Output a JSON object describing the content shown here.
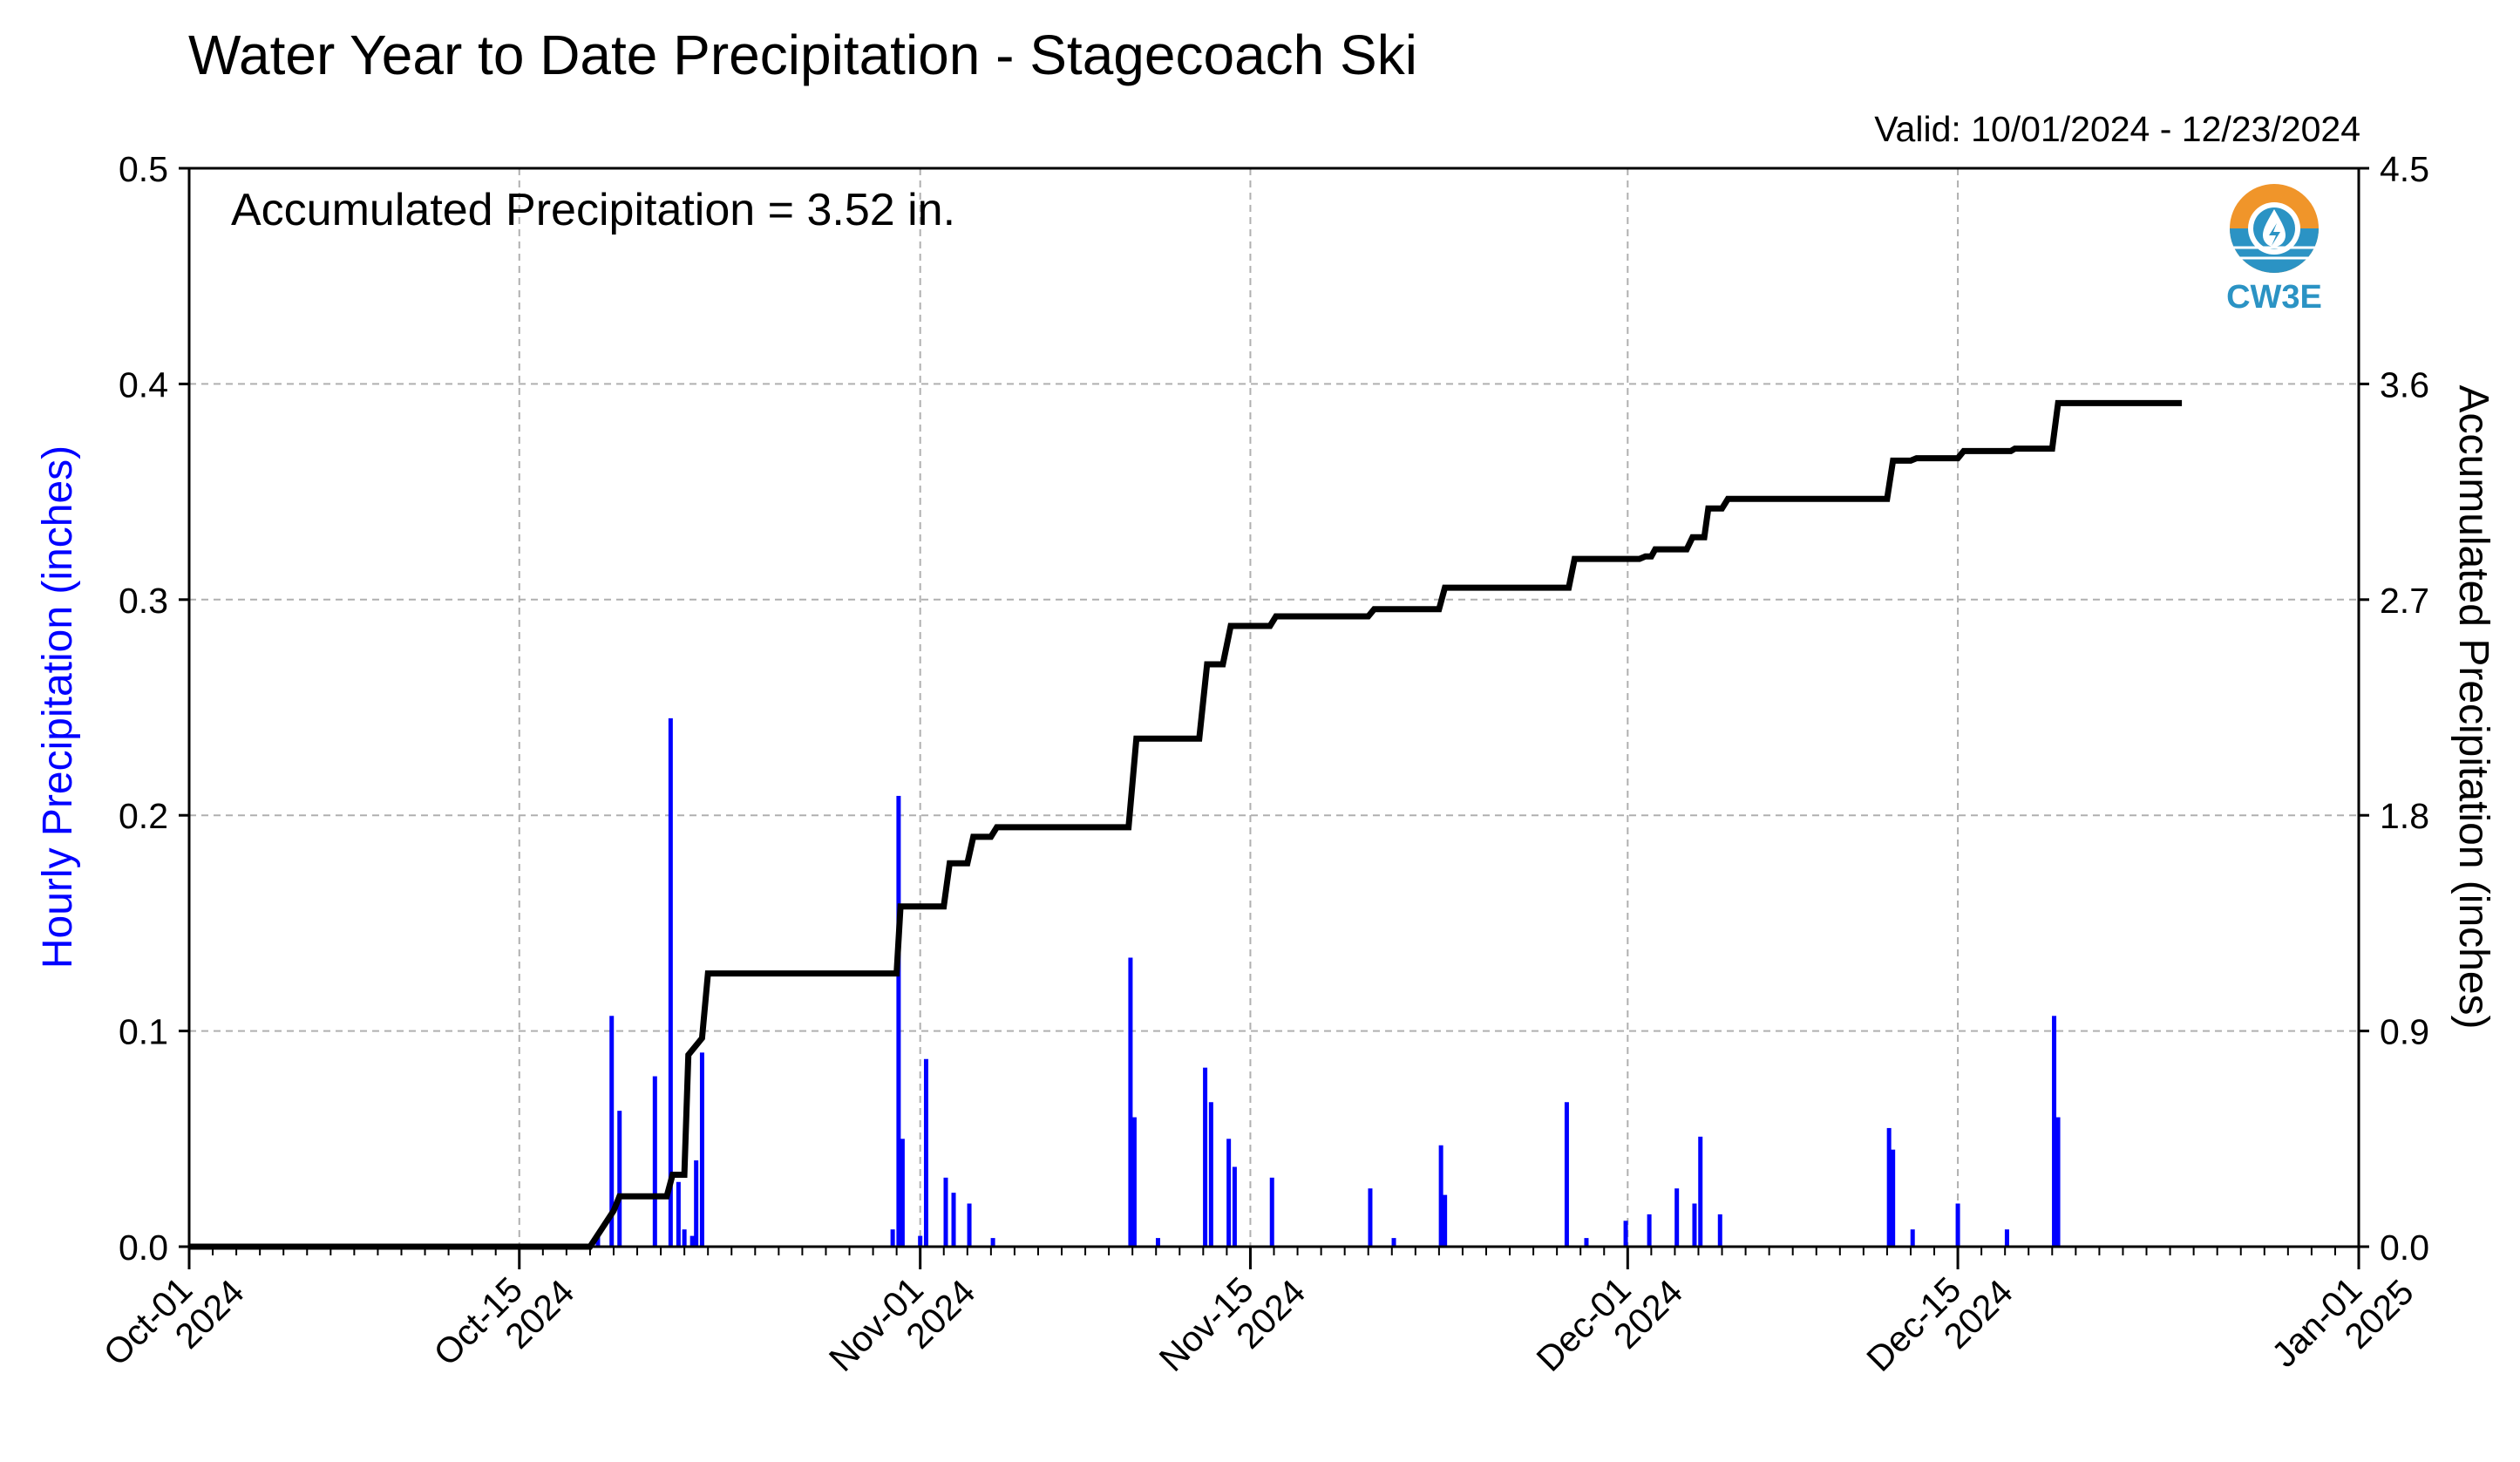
{
  "title": "Water Year to Date Precipitation - Stagecoach Ski",
  "valid_text": "Valid: 10/01/2024 - 12/23/2024",
  "annotation": "Accumulated Precipitation = 3.52 in.",
  "logo": {
    "text": "CW3E",
    "icon": "cw3e-water-drop-logo",
    "colors": {
      "sun": "#f0952a",
      "water": "#2b93c4",
      "drop": "#ffffff"
    }
  },
  "colors": {
    "hourly_bars": "#0000ff",
    "accumulated_line": "#000000",
    "grid": "#b0b0b0",
    "left_axis_label": "#0000ff",
    "right_axis_label": "#000000"
  },
  "chart_data": {
    "type": "bar+line",
    "title": "Water Year to Date Precipitation - Stagecoach Ski",
    "ylabel": "Hourly Precipitation (inches)",
    "y2label": "Accumulated Precipitation (inches)",
    "ylim": [
      0,
      0.5
    ],
    "y2lim": [
      0,
      4.5
    ],
    "xlim": [
      "2024-10-01",
      "2025-01-01"
    ],
    "grid": true,
    "y_ticks": [
      "0.0",
      "0.1",
      "0.2",
      "0.3",
      "0.4",
      "0.5"
    ],
    "y2_ticks": [
      "0.0",
      "0.9",
      "1.8",
      "2.7",
      "3.6",
      "4.5"
    ],
    "x_ticks": [
      {
        "date": "2024-10-01",
        "line1": "Oct-01",
        "line2": "2024"
      },
      {
        "date": "2024-10-15",
        "line1": "Oct-15",
        "line2": "2024"
      },
      {
        "date": "2024-11-01",
        "line1": "Nov-01",
        "line2": "2024"
      },
      {
        "date": "2024-11-15",
        "line1": "Nov-15",
        "line2": "2024"
      },
      {
        "date": "2024-12-01",
        "line1": "Dec-01",
        "line2": "2024"
      },
      {
        "date": "2024-12-15",
        "line1": "Dec-15",
        "line2": "2024"
      },
      {
        "date": "2025-01-01",
        "line1": "Jan-01",
        "line2": "2025"
      }
    ],
    "series": [
      {
        "name": "Hourly Precipitation (inches)",
        "type": "bar",
        "x": [
          "2024-10-18T08:00",
          "2024-10-18T22:00",
          "2024-10-19T06:00",
          "2024-10-20T18:00",
          "2024-10-21T10:00",
          "2024-10-21T18:00",
          "2024-10-22T00:00",
          "2024-10-22T08:00",
          "2024-10-22T12:00",
          "2024-10-22T18:00",
          "2024-10-30T20:00",
          "2024-10-31T02:00",
          "2024-10-31T06:00",
          "2024-11-01T00:00",
          "2024-11-01T06:00",
          "2024-11-02T02:00",
          "2024-11-02T10:00",
          "2024-11-03T02:00",
          "2024-11-04T02:00",
          "2024-11-09T22:00",
          "2024-11-10T02:00",
          "2024-11-11T02:00",
          "2024-11-13T02:00",
          "2024-11-13T08:00",
          "2024-11-14T02:00",
          "2024-11-14T08:00",
          "2024-11-15T22:00",
          "2024-11-20T02:00",
          "2024-11-21T02:00",
          "2024-11-23T02:00",
          "2024-11-23T06:00",
          "2024-11-28T10:00",
          "2024-11-29T06:00",
          "2024-11-30T22:00",
          "2024-12-01T22:00",
          "2024-12-03T02:00",
          "2024-12-03T20:00",
          "2024-12-04T02:00",
          "2024-12-04T22:00",
          "2024-12-12T02:00",
          "2024-12-12T06:00",
          "2024-12-13T02:00",
          "2024-12-15T00:00",
          "2024-12-17T02:00",
          "2024-12-19T02:00",
          "2024-12-19T06:00"
        ],
        "values": [
          0.005,
          0.107,
          0.063,
          0.079,
          0.245,
          0.03,
          0.008,
          0.005,
          0.04,
          0.09,
          0.008,
          0.209,
          0.05,
          0.005,
          0.087,
          0.032,
          0.025,
          0.02,
          0.004,
          0.134,
          0.06,
          0.004,
          0.083,
          0.067,
          0.05,
          0.037,
          0.032,
          0.027,
          0.004,
          0.047,
          0.024,
          0.067,
          0.004,
          0.012,
          0.015,
          0.027,
          0.02,
          0.051,
          0.015,
          0.055,
          0.045,
          0.008,
          0.02,
          0.008,
          0.107,
          0.06
        ]
      },
      {
        "name": "Accumulated Precipitation (inches)",
        "type": "line",
        "x": [
          "2024-10-01T00:00",
          "2024-10-18T00:00",
          "2024-10-19T00:00",
          "2024-10-19T06:00",
          "2024-10-21T06:00",
          "2024-10-21T12:00",
          "2024-10-22T00:00",
          "2024-10-22T04:00",
          "2024-10-22T18:00",
          "2024-10-23T00:00",
          "2024-10-31T00:00",
          "2024-10-31T04:00",
          "2024-11-02T00:00",
          "2024-11-02T06:00",
          "2024-11-03T00:00",
          "2024-11-03T06:00",
          "2024-11-04T00:00",
          "2024-11-04T06:00",
          "2024-11-05T00:00",
          "2024-11-09T20:00",
          "2024-11-10T04:00",
          "2024-11-12T20:00",
          "2024-11-13T04:00",
          "2024-11-13T20:00",
          "2024-11-14T04:00",
          "2024-11-15T20:00",
          "2024-11-16T02:00",
          "2024-11-20T00:00",
          "2024-11-20T06:00",
          "2024-11-23T00:00",
          "2024-11-23T06:00",
          "2024-11-28T12:00",
          "2024-11-28T18:00",
          "2024-12-01T12:00",
          "2024-12-01T18:00",
          "2024-12-02T00:00",
          "2024-12-02T04:00",
          "2024-12-03T12:00",
          "2024-12-03T18:00",
          "2024-12-04T06:00",
          "2024-12-04T10:00",
          "2024-12-05T00:00",
          "2024-12-05T06:00",
          "2024-12-12T00:00",
          "2024-12-12T06:00",
          "2024-12-13T00:00",
          "2024-12-13T06:00",
          "2024-12-15T00:00",
          "2024-12-15T06:00",
          "2024-12-17T06:00",
          "2024-12-17T10:00",
          "2024-12-19T00:00",
          "2024-12-19T06:00",
          "2024-12-24T12:00"
        ],
        "values": [
          0.0,
          0.0,
          0.15,
          0.21,
          0.21,
          0.3,
          0.3,
          0.8,
          0.87,
          1.14,
          1.14,
          1.42,
          1.42,
          1.6,
          1.6,
          1.71,
          1.71,
          1.75,
          1.75,
          1.75,
          2.12,
          2.12,
          2.43,
          2.43,
          2.59,
          2.59,
          2.63,
          2.63,
          2.66,
          2.66,
          2.75,
          2.75,
          2.87,
          2.87,
          2.88,
          2.88,
          2.91,
          2.91,
          2.96,
          2.96,
          3.08,
          3.08,
          3.12,
          3.12,
          3.28,
          3.28,
          3.29,
          3.29,
          3.32,
          3.32,
          3.33,
          3.33,
          3.52,
          3.52
        ]
      }
    ]
  }
}
